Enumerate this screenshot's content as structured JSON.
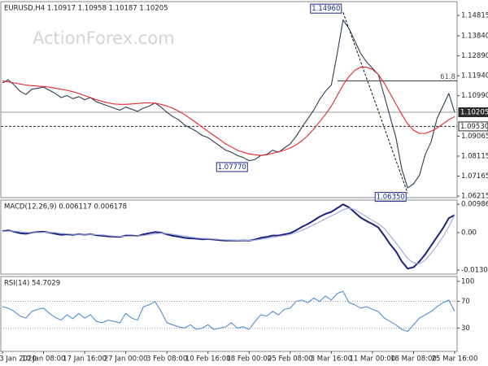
{
  "chart_data": [
    {
      "type": "line",
      "title": "EURUSD,H4  1.10917 1.10958 1.10187 1.10205",
      "watermark": "ActionForex.com",
      "series": [
        {
          "color": "#2f3d55",
          "values": [
            1.116,
            1.1175,
            1.115,
            1.112,
            1.1105,
            1.113,
            1.1135,
            1.114,
            1.1125,
            1.111,
            1.109,
            1.11,
            1.1085,
            1.1095,
            1.108,
            1.109,
            1.107,
            1.106,
            1.105,
            1.104,
            1.103,
            1.1045,
            1.1035,
            1.1025,
            1.104,
            1.105,
            1.1065,
            1.1045,
            1.102,
            1.1,
            1.0985,
            1.096,
            1.0945,
            1.093,
            1.091,
            1.09,
            1.088,
            1.086,
            1.084,
            1.083,
            1.0815,
            1.0805,
            1.079,
            1.0795,
            1.0815,
            1.082,
            1.084,
            1.083,
            1.085,
            1.087,
            1.0905,
            1.095,
            1.099,
            1.103,
            1.108,
            1.112,
            1.115,
            1.13,
            1.146,
            1.142,
            1.136,
            1.13,
            1.126,
            1.123,
            1.12,
            1.11,
            1.1,
            1.09,
            1.075,
            1.066,
            1.068,
            1.072,
            1.082,
            1.088,
            1.099,
            1.105,
            1.111,
            1.102
          ]
        },
        {
          "color": "#e8242a",
          "values": [
            1.117,
            1.1165,
            1.116,
            1.1155,
            1.115,
            1.1147,
            1.1145,
            1.1143,
            1.114,
            1.1135,
            1.113,
            1.1125,
            1.1118,
            1.111,
            1.11,
            1.109,
            1.108,
            1.1072,
            1.1065,
            1.106,
            1.1058,
            1.1058,
            1.106,
            1.1062,
            1.1065,
            1.1065,
            1.1063,
            1.1058,
            1.105,
            1.104,
            1.1025,
            1.101,
            1.099,
            1.097,
            1.095,
            1.093,
            1.091,
            1.089,
            1.087,
            1.0855,
            1.084,
            1.083,
            1.0822,
            1.0818,
            1.0815,
            1.0818,
            1.0825,
            1.0832,
            1.084,
            1.085,
            1.0865,
            1.0885,
            1.091,
            1.094,
            1.0975,
            1.101,
            1.105,
            1.11,
            1.115,
            1.119,
            1.122,
            1.1235,
            1.1235,
            1.1225,
            1.12,
            1.116,
            1.111,
            1.106,
            1.101,
            1.0965,
            1.0935,
            1.092,
            1.092,
            1.093,
            1.0945,
            1.0965,
            1.0985,
            1.1
          ]
        }
      ],
      "ylim": [
        1.0614,
        1.1547
      ],
      "yticks": [
        1.14815,
        {
          "value": 1.1384,
          "label": "1.13840"
        },
        {
          "value": 1.1289,
          "label": "1.12890"
        },
        {
          "value": 1.1194,
          "label": "1.11940"
        },
        {
          "value": 1.1099,
          "label": "1.10990"
        },
        1.09065,
        1.08115,
        1.07165,
        1.06215
      ],
      "price_lines": [
        {
          "value": 1.10205,
          "label": "1.10205",
          "style": "solid"
        },
        {
          "value": 1.0953,
          "label": "1.09530",
          "style": "dashed"
        }
      ],
      "level": {
        "value": 1.117,
        "label": "61.8"
      },
      "annotations": [
        {
          "label": "1.14960",
          "value": 1.1496,
          "index": 58
        },
        {
          "label": "1.07770",
          "value": 1.0777,
          "index": 42
        },
        {
          "label": "1.06350",
          "value": 1.0635,
          "index": 69
        }
      ]
    },
    {
      "type": "line",
      "title": "MACD(12,26,9) 0.006117 0.006178",
      "series": [
        {
          "color": "#1a237e",
          "values": [
            0.0005,
            0.0008,
            0.0003,
            -0.0002,
            -0.0004,
            0.0,
            0.0002,
            0.0003,
            0.0,
            -0.0004,
            -0.0008,
            -0.0006,
            -0.0008,
            -0.0005,
            -0.0007,
            -0.0005,
            -0.0009,
            -0.0011,
            -0.0013,
            -0.0014,
            -0.0015,
            -0.001,
            -0.001,
            -0.0012,
            -0.0006,
            -0.0002,
            0.0002,
            0.0,
            -0.0006,
            -0.0011,
            -0.0014,
            -0.0018,
            -0.002,
            -0.0021,
            -0.0023,
            -0.0022,
            -0.0024,
            -0.0026,
            -0.0028,
            -0.0027,
            -0.0028,
            -0.0027,
            -0.0028,
            -0.0024,
            -0.0018,
            -0.0015,
            -0.001,
            -0.001,
            -0.0006,
            -0.0002,
            0.0008,
            0.002,
            0.003,
            0.0042,
            0.0055,
            0.0065,
            0.0072,
            0.0085,
            0.0098,
            0.0088,
            0.007,
            0.0052,
            0.004,
            0.003,
            0.0018,
            -0.001,
            -0.004,
            -0.0065,
            -0.01,
            -0.0125,
            -0.012,
            -0.01,
            -0.0075,
            -0.0045,
            -0.0015,
            0.0015,
            0.005,
            0.0061
          ]
        },
        {
          "color": "#9fa8da",
          "values": [
            0.0004,
            0.0005,
            0.0005,
            0.0003,
            0.0001,
            0.0,
            0.0,
            0.0001,
            0.0001,
            0.0,
            -0.0003,
            -0.0004,
            -0.0006,
            -0.0006,
            -0.0006,
            -0.0006,
            -0.0007,
            -0.0008,
            -0.001,
            -0.0012,
            -0.0013,
            -0.0013,
            -0.0012,
            -0.0012,
            -0.001,
            -0.0007,
            -0.0004,
            -0.0002,
            -0.0003,
            -0.0006,
            -0.0009,
            -0.0012,
            -0.0015,
            -0.0018,
            -0.002,
            -0.0021,
            -0.0022,
            -0.0024,
            -0.0025,
            -0.0026,
            -0.0027,
            -0.0027,
            -0.0027,
            -0.0026,
            -0.0023,
            -0.002,
            -0.0016,
            -0.0013,
            -0.001,
            -0.0006,
            0.0,
            0.0008,
            0.0017,
            0.0027,
            0.0037,
            0.0048,
            0.0058,
            0.0068,
            0.008,
            0.0085,
            0.008,
            0.0068,
            0.0055,
            0.0043,
            0.0031,
            0.0015,
            -0.001,
            -0.0035,
            -0.0063,
            -0.009,
            -0.0105,
            -0.0108,
            -0.0095,
            -0.0072,
            -0.0045,
            -0.0015,
            0.002,
            0.0062
          ]
        }
      ],
      "ylim": [
        -0.0144,
        0.0113
      ],
      "yticks": [
        0.009862,
        {
          "value": 0,
          "label": "0.00"
        },
        -0.013002
      ]
    },
    {
      "type": "line",
      "title": "RSI(14) 54.7029",
      "series": [
        {
          "color": "#4f8fd8",
          "values": [
            62,
            60,
            55,
            48,
            45,
            55,
            58,
            60,
            52,
            46,
            42,
            50,
            44,
            52,
            45,
            50,
            40,
            38,
            42,
            40,
            38,
            52,
            45,
            42,
            62,
            65,
            70,
            55,
            38,
            35,
            32,
            30,
            35,
            28,
            30,
            35,
            28,
            30,
            32,
            38,
            30,
            32,
            28,
            40,
            50,
            48,
            55,
            50,
            58,
            60,
            70,
            72,
            68,
            75,
            70,
            78,
            72,
            82,
            85,
            68,
            65,
            60,
            62,
            58,
            55,
            45,
            40,
            35,
            28,
            25,
            35,
            45,
            50,
            55,
            62,
            68,
            72,
            55
          ]
        }
      ],
      "ylim": [
        -4.8,
        107.2
      ],
      "yticks": [
        100,
        70,
        30
      ],
      "levels": [
        70,
        30
      ],
      "categories": [
        "3 Jan 2020",
        null,
        null,
        null,
        null,
        null,
        null,
        "10 Jan 08:00",
        null,
        null,
        null,
        null,
        null,
        null,
        "17 Jan 16:00",
        null,
        null,
        null,
        null,
        null,
        null,
        "27 Jan 00:00",
        null,
        null,
        null,
        null,
        null,
        null,
        "3 Feb 08:00",
        null,
        null,
        null,
        null,
        null,
        null,
        "10 Feb 16:00",
        null,
        null,
        null,
        null,
        null,
        null,
        "18 Feb 00:00",
        null,
        null,
        null,
        null,
        null,
        null,
        "25 Feb 08:00",
        null,
        null,
        null,
        null,
        null,
        null,
        "3 Mar 16:00",
        null,
        null,
        null,
        null,
        null,
        null,
        "11 Mar 00:00",
        null,
        null,
        null,
        null,
        null,
        null,
        "18 Mar 08:00",
        null,
        null,
        null,
        null,
        null,
        null,
        "25 Mar 16:00"
      ]
    }
  ]
}
